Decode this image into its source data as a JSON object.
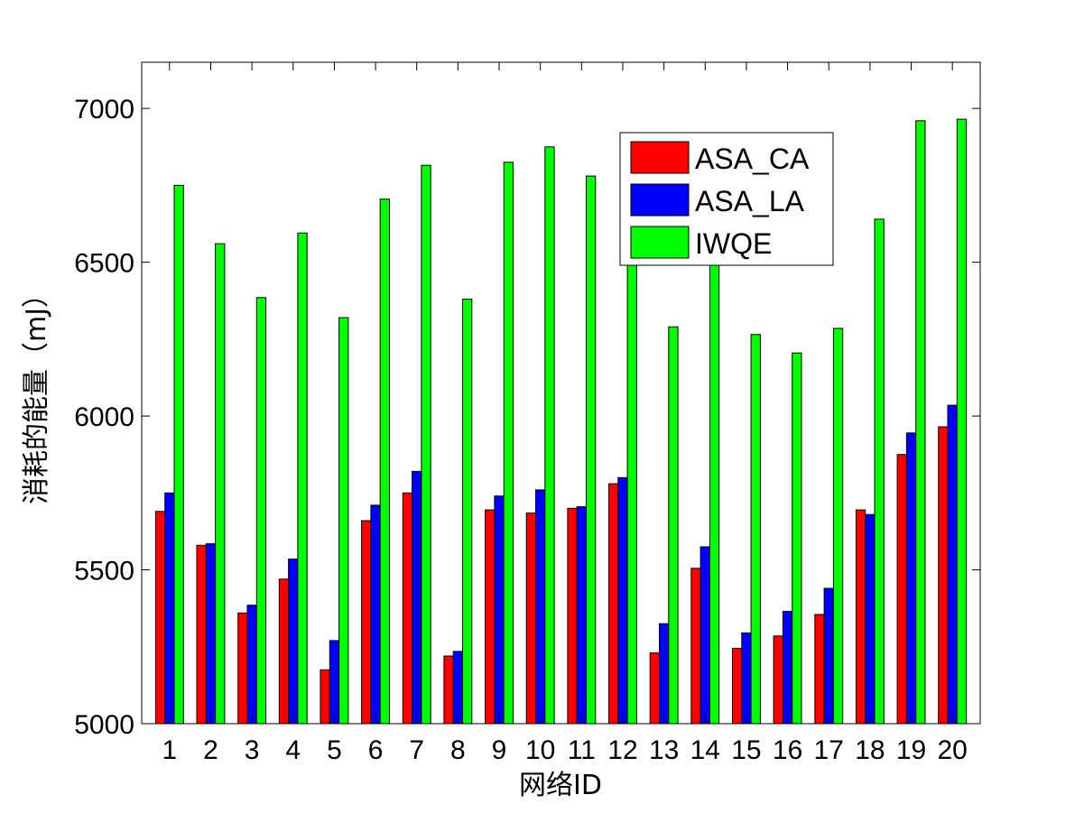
{
  "chart_data": {
    "type": "bar",
    "title": "",
    "xlabel": "网络ID",
    "ylabel": "消耗的能量（mJ）",
    "ylim": [
      5000,
      7150
    ],
    "yticks": [
      "5000",
      "5500",
      "6000",
      "6500",
      "7000"
    ],
    "categories": [
      "1",
      "2",
      "3",
      "4",
      "5",
      "6",
      "7",
      "8",
      "9",
      "10",
      "11",
      "12",
      "13",
      "14",
      "15",
      "16",
      "17",
      "18",
      "19",
      "20"
    ],
    "series": [
      {
        "name": "ASA_CA",
        "color": "#ff0000",
        "values": [
          5690,
          5580,
          5360,
          5470,
          5175,
          5660,
          5750,
          5220,
          5695,
          5685,
          5700,
          5780,
          5230,
          5505,
          5245,
          5285,
          5355,
          5695,
          5875,
          5965
        ]
      },
      {
        "name": "ASA_LA",
        "color": "#0000ff",
        "values": [
          5750,
          5585,
          5385,
          5535,
          5270,
          5710,
          5820,
          5235,
          5740,
          5760,
          5705,
          5800,
          5325,
          5575,
          5295,
          5365,
          5440,
          5680,
          5945,
          6035
        ]
      },
      {
        "name": "IWQE",
        "color": "#00ff00",
        "values": [
          6750,
          6560,
          6385,
          6595,
          6320,
          6705,
          6815,
          6380,
          6825,
          6875,
          6780,
          6550,
          6290,
          6550,
          6265,
          6205,
          6285,
          6640,
          6960,
          6965
        ]
      }
    ],
    "legend": {
      "position": "top-right"
    },
    "grid": false
  }
}
